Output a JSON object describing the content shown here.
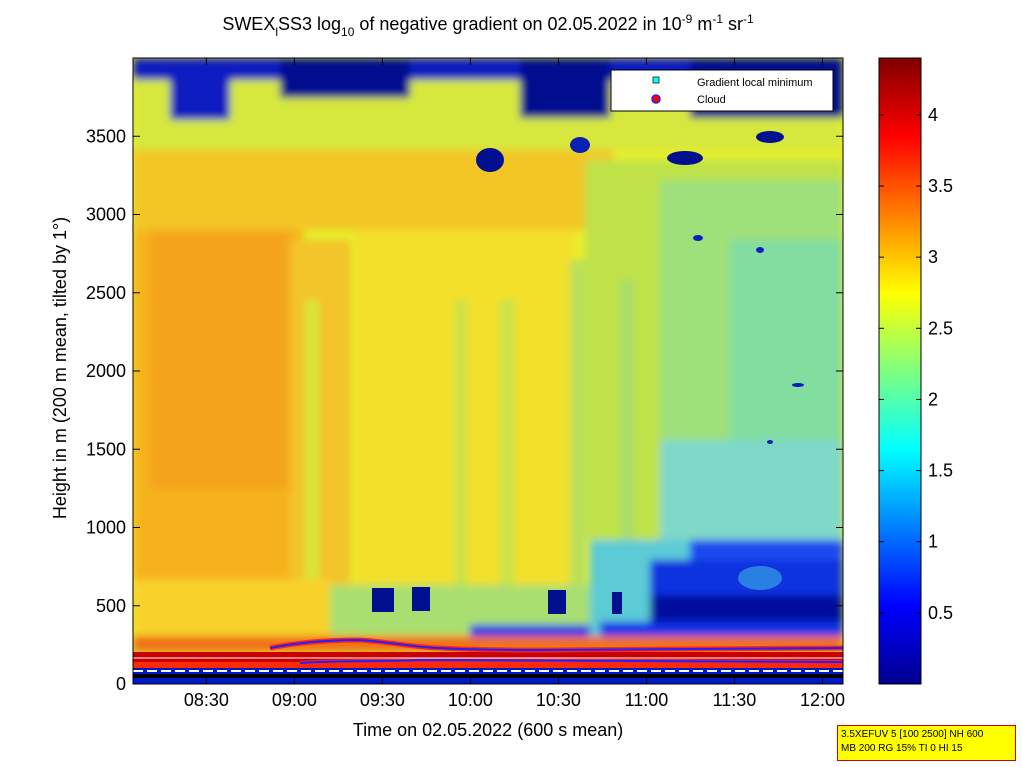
{
  "chart_data": {
    "type": "heatmap",
    "title": {
      "prefix": "SWEX",
      "prefix_sub": "l",
      "mid": "SS3 log",
      "mid_sub": "10",
      "text1": " of negative gradient on 02.05.2022 in 10",
      "exp1": "-9",
      "text2": " m",
      "exp2": "-1",
      "text3": " sr",
      "exp3": "-1"
    },
    "xlabel": "Time on 02.05.2022 (600 s mean)",
    "ylabel": "Height in m (200 m mean, tilted by 1°)",
    "xticks": [
      "08:30",
      "09:00",
      "09:30",
      "10:00",
      "10:30",
      "11:00",
      "11:30",
      "12:00"
    ],
    "xtick_minutes": [
      510,
      540,
      570,
      600,
      630,
      660,
      690,
      720
    ],
    "xlim_minutes": [
      485,
      727
    ],
    "yticks": [
      0,
      500,
      1000,
      1500,
      2000,
      2500,
      3000,
      3500
    ],
    "ylim": [
      0,
      4000
    ],
    "colorbar": {
      "ticks": [
        "0.5",
        "1",
        "1.5",
        "2",
        "2.5",
        "3",
        "3.5",
        "4"
      ],
      "tick_values": [
        0.5,
        1,
        1.5,
        2,
        2.5,
        3,
        3.5,
        4
      ],
      "range": [
        0,
        4.4
      ],
      "colormap": "jet"
    },
    "legend": {
      "placement": "top-right",
      "entries": [
        {
          "label": "Gradient local minimum",
          "marker": "square",
          "color": "#00ffff"
        },
        {
          "label": "Cloud",
          "marker": "circle",
          "color": "#ff0000"
        }
      ]
    },
    "regions_description_values": {
      "early_upper_level": 3.0,
      "late_upper_level": 2.2,
      "top_gap_level": 0.0
    }
  },
  "info_box": {
    "line1": "3.5XEFUV 5 [100 2500] NH 600",
    "line2": "MB 200 RG 15% TI 0 HI 15",
    "colors": {
      "background": "#ffff00",
      "border": "#d00000"
    }
  }
}
